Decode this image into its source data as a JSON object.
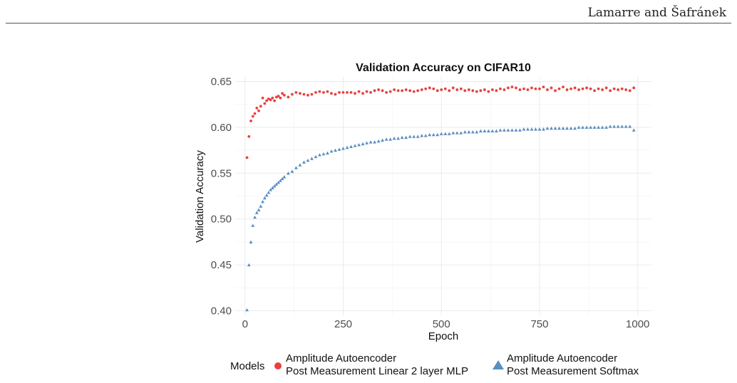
{
  "page": {
    "running_head": "Lamarre and Šafránek"
  },
  "chart_data": {
    "type": "scatter",
    "title": "Validation Accuracy on CIFAR10",
    "xlabel": "Epoch",
    "ylabel": "Validation Accuracy",
    "xlim": [
      -25,
      1035
    ],
    "ylim": [
      0.395,
      0.655
    ],
    "x_ticks": [
      0,
      250,
      500,
      750,
      1000
    ],
    "x_tick_labels": [
      "0",
      "250",
      "500",
      "750",
      "1000"
    ],
    "y_ticks": [
      0.4,
      0.45,
      0.5,
      0.55,
      0.6,
      0.65
    ],
    "y_tick_labels": [
      "0.40",
      "0.45",
      "0.50",
      "0.55",
      "0.60",
      "0.65"
    ],
    "grid": true,
    "legend_placement": "bottom",
    "legend_title": "Models",
    "series": [
      {
        "name": "Amplitude Autoencoder\nPost Measurement Linear 2 layer MLP",
        "name_lines": [
          "Amplitude Autoencoder",
          "Post Measurement Linear 2 layer MLP"
        ],
        "marker": "circle",
        "color": "#e8413e",
        "x": [
          5,
          10,
          15,
          20,
          25,
          30,
          35,
          40,
          45,
          50,
          55,
          60,
          65,
          70,
          75,
          80,
          85,
          90,
          95,
          100,
          110,
          120,
          130,
          140,
          150,
          160,
          170,
          180,
          190,
          200,
          210,
          220,
          230,
          240,
          250,
          260,
          270,
          280,
          290,
          300,
          310,
          320,
          330,
          340,
          350,
          360,
          370,
          380,
          390,
          400,
          410,
          420,
          430,
          440,
          450,
          460,
          470,
          480,
          490,
          500,
          510,
          520,
          530,
          540,
          550,
          560,
          570,
          580,
          590,
          600,
          610,
          620,
          630,
          640,
          650,
          660,
          670,
          680,
          690,
          700,
          710,
          720,
          730,
          740,
          750,
          760,
          770,
          780,
          790,
          800,
          810,
          820,
          830,
          840,
          850,
          860,
          870,
          880,
          890,
          900,
          910,
          920,
          930,
          940,
          950,
          960,
          970,
          980,
          990
        ],
        "y": [
          0.567,
          0.59,
          0.607,
          0.612,
          0.615,
          0.621,
          0.618,
          0.623,
          0.632,
          0.626,
          0.629,
          0.631,
          0.63,
          0.632,
          0.629,
          0.633,
          0.634,
          0.632,
          0.637,
          0.635,
          0.633,
          0.636,
          0.638,
          0.637,
          0.636,
          0.635,
          0.636,
          0.638,
          0.639,
          0.638,
          0.639,
          0.637,
          0.636,
          0.638,
          0.638,
          0.638,
          0.638,
          0.637,
          0.639,
          0.637,
          0.639,
          0.638,
          0.64,
          0.641,
          0.64,
          0.638,
          0.639,
          0.641,
          0.64,
          0.64,
          0.641,
          0.64,
          0.639,
          0.64,
          0.641,
          0.642,
          0.643,
          0.642,
          0.64,
          0.641,
          0.642,
          0.64,
          0.643,
          0.641,
          0.642,
          0.64,
          0.641,
          0.64,
          0.639,
          0.64,
          0.641,
          0.639,
          0.641,
          0.64,
          0.642,
          0.641,
          0.643,
          0.644,
          0.643,
          0.641,
          0.642,
          0.641,
          0.643,
          0.642,
          0.642,
          0.644,
          0.641,
          0.643,
          0.64,
          0.642,
          0.644,
          0.641,
          0.642,
          0.643,
          0.641,
          0.642,
          0.643,
          0.642,
          0.64,
          0.642,
          0.641,
          0.643,
          0.64,
          0.642,
          0.641,
          0.642,
          0.641,
          0.64,
          0.643
        ]
      },
      {
        "name": "Amplitude Autoencoder\nPost Measurement Softmax",
        "name_lines": [
          "Amplitude Autoencoder",
          "Post Measurement Softmax"
        ],
        "marker": "triangle",
        "color": "#5b8ec2",
        "x": [
          5,
          10,
          15,
          20,
          25,
          30,
          35,
          40,
          45,
          50,
          55,
          60,
          65,
          70,
          75,
          80,
          85,
          90,
          95,
          100,
          110,
          120,
          130,
          140,
          150,
          160,
          170,
          180,
          190,
          200,
          210,
          220,
          230,
          240,
          250,
          260,
          270,
          280,
          290,
          300,
          310,
          320,
          330,
          340,
          350,
          360,
          370,
          380,
          390,
          400,
          410,
          420,
          430,
          440,
          450,
          460,
          470,
          480,
          490,
          500,
          510,
          520,
          530,
          540,
          550,
          560,
          570,
          580,
          590,
          600,
          610,
          620,
          630,
          640,
          650,
          660,
          670,
          680,
          690,
          700,
          710,
          720,
          730,
          740,
          750,
          760,
          770,
          780,
          790,
          800,
          810,
          820,
          830,
          840,
          850,
          860,
          870,
          880,
          890,
          900,
          910,
          920,
          930,
          940,
          950,
          960,
          970,
          980,
          990
        ],
        "y": [
          0.401,
          0.45,
          0.475,
          0.493,
          0.502,
          0.507,
          0.51,
          0.514,
          0.519,
          0.523,
          0.526,
          0.529,
          0.532,
          0.534,
          0.536,
          0.538,
          0.54,
          0.542,
          0.544,
          0.546,
          0.55,
          0.552,
          0.556,
          0.559,
          0.562,
          0.564,
          0.566,
          0.568,
          0.57,
          0.571,
          0.572,
          0.574,
          0.575,
          0.576,
          0.577,
          0.578,
          0.579,
          0.58,
          0.581,
          0.582,
          0.583,
          0.584,
          0.584,
          0.585,
          0.586,
          0.587,
          0.587,
          0.588,
          0.588,
          0.589,
          0.589,
          0.59,
          0.59,
          0.59,
          0.591,
          0.591,
          0.592,
          0.592,
          0.592,
          0.593,
          0.593,
          0.593,
          0.594,
          0.594,
          0.594,
          0.595,
          0.595,
          0.595,
          0.595,
          0.596,
          0.596,
          0.596,
          0.596,
          0.596,
          0.597,
          0.597,
          0.597,
          0.597,
          0.597,
          0.597,
          0.598,
          0.598,
          0.598,
          0.598,
          0.598,
          0.598,
          0.599,
          0.599,
          0.599,
          0.599,
          0.599,
          0.599,
          0.599,
          0.599,
          0.6,
          0.6,
          0.6,
          0.6,
          0.6,
          0.6,
          0.6,
          0.6,
          0.601,
          0.601,
          0.601,
          0.601,
          0.601,
          0.601,
          0.597
        ]
      }
    ]
  }
}
